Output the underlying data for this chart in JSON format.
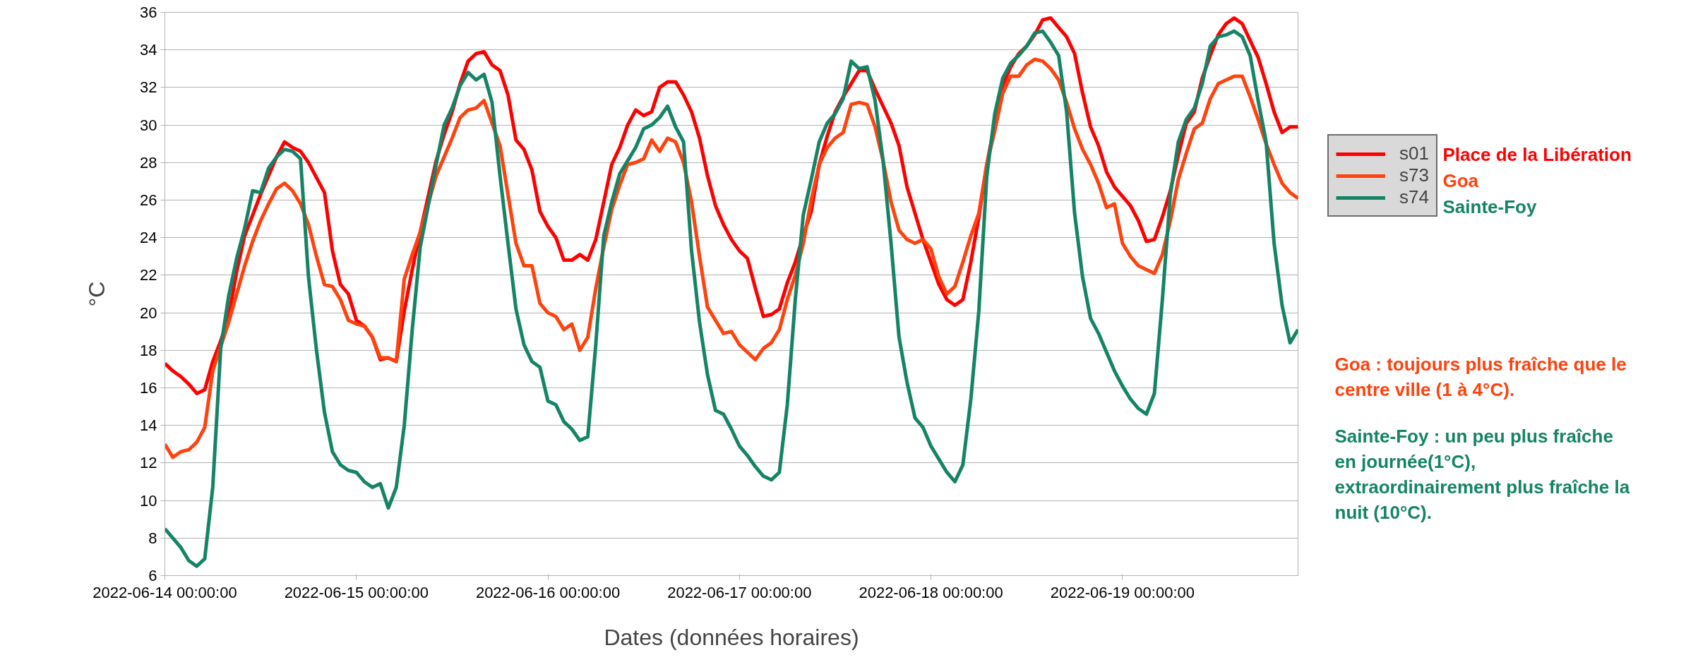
{
  "chart_data": {
    "type": "line",
    "xlabel": "Dates (données horaires)",
    "ylabel": "°C",
    "x": [
      "2022-06-14T00:00",
      "2022-06-14T01:00",
      "2022-06-14T02:00",
      "2022-06-14T03:00",
      "2022-06-14T04:00",
      "2022-06-14T05:00",
      "2022-06-14T06:00",
      "2022-06-14T07:00",
      "2022-06-14T08:00",
      "2022-06-14T09:00",
      "2022-06-14T10:00",
      "2022-06-14T11:00",
      "2022-06-14T12:00",
      "2022-06-14T13:00",
      "2022-06-14T14:00",
      "2022-06-14T15:00",
      "2022-06-14T16:00",
      "2022-06-14T17:00",
      "2022-06-14T18:00",
      "2022-06-14T19:00",
      "2022-06-14T20:00",
      "2022-06-14T21:00",
      "2022-06-14T22:00",
      "2022-06-14T23:00",
      "2022-06-15T00:00",
      "2022-06-15T01:00",
      "2022-06-15T02:00",
      "2022-06-15T03:00",
      "2022-06-15T04:00",
      "2022-06-15T05:00",
      "2022-06-15T06:00",
      "2022-06-15T07:00",
      "2022-06-15T08:00",
      "2022-06-15T09:00",
      "2022-06-15T10:00",
      "2022-06-15T11:00",
      "2022-06-15T12:00",
      "2022-06-15T13:00",
      "2022-06-15T14:00",
      "2022-06-15T15:00",
      "2022-06-15T16:00",
      "2022-06-15T17:00",
      "2022-06-15T18:00",
      "2022-06-15T19:00",
      "2022-06-15T20:00",
      "2022-06-15T21:00",
      "2022-06-15T22:00",
      "2022-06-15T23:00",
      "2022-06-16T00:00",
      "2022-06-16T01:00",
      "2022-06-16T02:00",
      "2022-06-16T03:00",
      "2022-06-16T04:00",
      "2022-06-16T05:00",
      "2022-06-16T06:00",
      "2022-06-16T07:00",
      "2022-06-16T08:00",
      "2022-06-16T09:00",
      "2022-06-16T10:00",
      "2022-06-16T11:00",
      "2022-06-16T12:00",
      "2022-06-16T13:00",
      "2022-06-16T14:00",
      "2022-06-16T15:00",
      "2022-06-16T16:00",
      "2022-06-16T17:00",
      "2022-06-16T18:00",
      "2022-06-16T19:00",
      "2022-06-16T20:00",
      "2022-06-16T21:00",
      "2022-06-16T22:00",
      "2022-06-16T23:00",
      "2022-06-17T00:00",
      "2022-06-17T01:00",
      "2022-06-17T02:00",
      "2022-06-17T03:00",
      "2022-06-17T04:00",
      "2022-06-17T05:00",
      "2022-06-17T06:00",
      "2022-06-17T07:00",
      "2022-06-17T08:00",
      "2022-06-17T09:00",
      "2022-06-17T10:00",
      "2022-06-17T11:00",
      "2022-06-17T12:00",
      "2022-06-17T13:00",
      "2022-06-17T14:00",
      "2022-06-17T15:00",
      "2022-06-17T16:00",
      "2022-06-17T17:00",
      "2022-06-17T18:00",
      "2022-06-17T19:00",
      "2022-06-17T20:00",
      "2022-06-17T21:00",
      "2022-06-17T22:00",
      "2022-06-17T23:00",
      "2022-06-18T00:00",
      "2022-06-18T01:00",
      "2022-06-18T02:00",
      "2022-06-18T03:00",
      "2022-06-18T04:00",
      "2022-06-18T05:00",
      "2022-06-18T06:00",
      "2022-06-18T07:00",
      "2022-06-18T08:00",
      "2022-06-18T09:00",
      "2022-06-18T10:00",
      "2022-06-18T11:00",
      "2022-06-18T12:00",
      "2022-06-18T13:00",
      "2022-06-18T14:00",
      "2022-06-18T15:00",
      "2022-06-18T16:00",
      "2022-06-18T17:00",
      "2022-06-18T18:00",
      "2022-06-18T19:00",
      "2022-06-18T20:00",
      "2022-06-18T21:00",
      "2022-06-18T22:00",
      "2022-06-18T23:00",
      "2022-06-19T00:00",
      "2022-06-19T01:00",
      "2022-06-19T02:00",
      "2022-06-19T03:00",
      "2022-06-19T04:00",
      "2022-06-19T05:00",
      "2022-06-19T06:00",
      "2022-06-19T07:00",
      "2022-06-19T08:00",
      "2022-06-19T09:00",
      "2022-06-19T10:00",
      "2022-06-19T11:00",
      "2022-06-19T12:00",
      "2022-06-19T13:00",
      "2022-06-19T14:00",
      "2022-06-19T15:00",
      "2022-06-19T16:00",
      "2022-06-19T17:00",
      "2022-06-19T18:00",
      "2022-06-19T19:00",
      "2022-06-19T20:00",
      "2022-06-19T21:00",
      "2022-06-19T22:00"
    ],
    "series": [
      {
        "name": "s01",
        "color": "#ff0000",
        "values": [
          17.3,
          16.9,
          16.6,
          16.2,
          15.7,
          15.9,
          17.4,
          18.5,
          19.8,
          22.2,
          24.1,
          25.2,
          26.3,
          27.3,
          28.3,
          29.1,
          28.8,
          28.6,
          28.0,
          27.2,
          26.4,
          23.3,
          21.5,
          21.0,
          19.6,
          19.3,
          18.7,
          17.5,
          17.6,
          17.4,
          20.1,
          22.3,
          24.3,
          26.2,
          28.1,
          29.5,
          30.7,
          32.2,
          33.4,
          33.8,
          33.9,
          33.2,
          32.9,
          31.6,
          29.2,
          28.7,
          27.6,
          25.4,
          24.6,
          24.0,
          22.8,
          22.8,
          23.1,
          22.8,
          23.9,
          25.9,
          27.9,
          28.8,
          30.0,
          30.8,
          30.5,
          30.7,
          32.0,
          32.3,
          32.3,
          31.6,
          30.7,
          29.3,
          27.3,
          25.7,
          24.7,
          23.9,
          23.3,
          22.9,
          21.3,
          19.8,
          19.9,
          20.2,
          21.6,
          22.7,
          24.1,
          25.4,
          27.9,
          29.4,
          30.7,
          31.5,
          32.2,
          32.9,
          32.9,
          31.9,
          31.0,
          30.1,
          28.9,
          26.7,
          25.3,
          23.9,
          22.7,
          21.5,
          20.7,
          20.4,
          20.7,
          22.7,
          25.1,
          27.9,
          30.1,
          32.1,
          33.1,
          33.8,
          34.2,
          34.8,
          35.6,
          35.7,
          35.2,
          34.7,
          33.8,
          31.7,
          29.9,
          28.9,
          27.5,
          26.7,
          26.2,
          25.7,
          24.9,
          23.8,
          23.9,
          25.1,
          26.5,
          28.4,
          30.1,
          30.7,
          32.5,
          33.7,
          34.8,
          35.4,
          35.7,
          35.4,
          34.5,
          33.6,
          32.2,
          30.7,
          29.6,
          29.9,
          29.9
        ]
      },
      {
        "name": "s73",
        "color": "#ff420e",
        "values": [
          13.0,
          12.3,
          12.6,
          12.7,
          13.1,
          13.9,
          16.9,
          18.2,
          19.5,
          21.0,
          22.5,
          23.8,
          24.9,
          25.8,
          26.6,
          26.9,
          26.5,
          25.8,
          24.7,
          23.0,
          21.5,
          21.4,
          20.7,
          19.6,
          19.4,
          19.3,
          18.7,
          17.6,
          17.6,
          17.4,
          21.8,
          23.1,
          24.3,
          25.8,
          27.3,
          28.3,
          29.3,
          30.4,
          30.8,
          30.9,
          31.3,
          30.1,
          28.9,
          26.3,
          23.7,
          22.5,
          22.5,
          20.5,
          20.0,
          19.8,
          19.1,
          19.4,
          18.0,
          18.7,
          21.3,
          23.5,
          25.5,
          26.8,
          27.9,
          28.0,
          28.2,
          29.2,
          28.6,
          29.3,
          29.1,
          28.0,
          25.9,
          23.0,
          20.3,
          19.6,
          18.9,
          19.0,
          18.3,
          17.9,
          17.5,
          18.1,
          18.4,
          19.1,
          20.7,
          22.0,
          23.7,
          26.0,
          27.9,
          28.8,
          29.3,
          29.6,
          31.1,
          31.2,
          31.1,
          29.9,
          28.1,
          25.9,
          24.4,
          23.9,
          23.7,
          23.9,
          23.4,
          21.9,
          21.0,
          21.4,
          22.7,
          24.1,
          25.3,
          27.9,
          29.7,
          31.7,
          32.6,
          32.6,
          33.2,
          33.5,
          33.4,
          33.0,
          32.4,
          31.2,
          29.8,
          28.7,
          27.9,
          26.9,
          25.6,
          25.8,
          23.7,
          23.0,
          22.5,
          22.3,
          22.1,
          23.1,
          24.9,
          27.1,
          28.5,
          29.8,
          30.1,
          31.4,
          32.2,
          32.4,
          32.6,
          32.6,
          31.5,
          30.3,
          29.0,
          27.9,
          26.9,
          26.4,
          26.1
        ]
      },
      {
        "name": "s74",
        "color": "#158466",
        "values": [
          8.5,
          8.0,
          7.5,
          6.8,
          6.5,
          6.9,
          10.7,
          18.1,
          20.9,
          22.9,
          24.5,
          26.5,
          26.4,
          27.7,
          28.3,
          28.7,
          28.6,
          28.2,
          21.9,
          18.0,
          14.7,
          12.6,
          11.9,
          11.6,
          11.5,
          11.0,
          10.7,
          10.9,
          9.6,
          10.7,
          14.0,
          19.1,
          23.5,
          25.7,
          27.9,
          30.0,
          30.9,
          32.1,
          32.8,
          32.4,
          32.7,
          31.2,
          27.3,
          23.7,
          20.2,
          18.3,
          17.4,
          17.1,
          15.3,
          15.1,
          14.2,
          13.8,
          13.2,
          13.4,
          18.3,
          24.1,
          25.9,
          27.4,
          28.1,
          28.8,
          29.8,
          30.0,
          30.4,
          31.0,
          29.9,
          29.1,
          23.3,
          19.5,
          16.7,
          14.8,
          14.6,
          13.8,
          12.9,
          12.4,
          11.8,
          11.3,
          11.1,
          11.5,
          15.1,
          20.7,
          25.2,
          27.1,
          29.1,
          30.1,
          30.6,
          31.4,
          33.4,
          33.0,
          33.1,
          31.3,
          28.1,
          23.7,
          18.7,
          16.3,
          14.4,
          13.9,
          12.9,
          12.2,
          11.5,
          11.0,
          11.9,
          15.4,
          20.1,
          27.3,
          30.6,
          32.5,
          33.3,
          33.7,
          34.2,
          34.9,
          35.0,
          34.4,
          33.7,
          30.7,
          25.3,
          21.9,
          19.7,
          18.9,
          17.9,
          16.9,
          16.1,
          15.4,
          14.9,
          14.6,
          15.7,
          20.7,
          26.3,
          29.1,
          30.3,
          30.9,
          32.2,
          34.2,
          34.7,
          34.8,
          35.0,
          34.7,
          33.7,
          31.3,
          29.1,
          23.7,
          20.4,
          18.4,
          19.1
        ]
      }
    ],
    "xlim": [
      "2022-06-14T00:00",
      "2022-06-19T22:00"
    ],
    "xticks": [
      {
        "value": "2022-06-14T00:00",
        "label": "2022-06-14 00:00:00"
      },
      {
        "value": "2022-06-15T00:00",
        "label": "2022-06-15 00:00:00"
      },
      {
        "value": "2022-06-16T00:00",
        "label": "2022-06-16 00:00:00"
      },
      {
        "value": "2022-06-17T00:00",
        "label": "2022-06-17 00:00:00"
      },
      {
        "value": "2022-06-18T00:00",
        "label": "2022-06-18 00:00:00"
      },
      {
        "value": "2022-06-19T00:00",
        "label": "2022-06-19 00:00:00"
      }
    ],
    "ylim": [
      6,
      36
    ],
    "yticks": [
      6,
      8,
      10,
      12,
      14,
      16,
      18,
      20,
      22,
      24,
      26,
      28,
      30,
      32,
      34,
      36
    ],
    "grid": "y",
    "legend": "right",
    "line_style": "solid",
    "marker": "none",
    "annotations": [
      "Place de la Libération",
      "Goa",
      "Sainte-Foy",
      "Goa : toujours plus fraîche que le centre ville (1 à 4°C).",
      "Sainte-Foy : un peu plus fraîche en journée(1°C), extraordinairement plus fraîche la nuit (10°C)."
    ]
  }
}
